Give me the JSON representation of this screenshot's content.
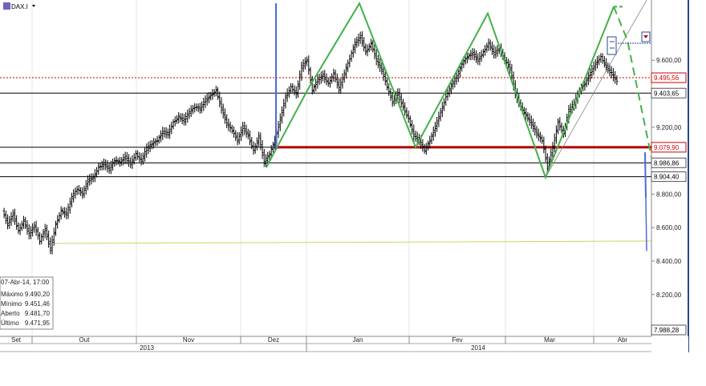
{
  "header": {
    "symbol": "DAX.I",
    "dropdown_icon": "caret-down-icon",
    "chart_icon": "chart-icon"
  },
  "chart_data": {
    "type": "candlestick",
    "y_ticks": [
      "9.600,00",
      "9.200,00",
      "8.800,00",
      "8.600,00",
      "8.400,00",
      "8.200,00"
    ],
    "y_tick_values": [
      9600,
      9200,
      8800,
      8600,
      8400,
      8200
    ],
    "ylim": [
      7950,
      9960
    ],
    "x_months": [
      "Set",
      "Out",
      "Nov",
      "Dez",
      "Jan",
      "Fev",
      "Mar",
      "Abr"
    ],
    "x_years": [
      "2013",
      "2014"
    ],
    "horizontal_levels": [
      {
        "label": "9.495,56",
        "value": 9495.56,
        "color": "#cc0000",
        "style": "dotted"
      },
      {
        "label": "9.403,65",
        "value": 9403.65,
        "color": "#000000",
        "style": "solid"
      },
      {
        "label": "9.079,90",
        "value": 9079.9,
        "color": "#b00000",
        "style": "thick"
      },
      {
        "label": "8.986,86",
        "value": 8986.86,
        "color": "#000000",
        "style": "solid"
      },
      {
        "label": "8.904,40",
        "value": 8904.4,
        "color": "#000000",
        "style": "solid"
      },
      {
        "label": "7.988,28",
        "value": 7988.28,
        "color": "#000000",
        "style": "box"
      }
    ],
    "info_box": {
      "date": "07-Abr-14, 17:00",
      "rows": [
        {
          "label": "Máximo",
          "value": "9.490,20"
        },
        {
          "label": "Mínimo",
          "value": "9.451,46"
        },
        {
          "label": "Aberto",
          "value": "9.481,70"
        },
        {
          "label": "Último",
          "value": "9.471,95",
          "highlight": true
        }
      ]
    },
    "colors": {
      "candles": "#000000",
      "pattern": "#44b04a",
      "blue_line": "#4a6bd8",
      "support_line": "#c8d860",
      "level_red": "#b00000",
      "tag_red": "#cc0000"
    },
    "price_series": [
      [
        0,
        8700
      ],
      [
        2,
        8620
      ],
      [
        4,
        8680
      ],
      [
        6,
        8580
      ],
      [
        8,
        8640
      ],
      [
        10,
        8560
      ],
      [
        12,
        8610
      ],
      [
        14,
        8520
      ],
      [
        16,
        8590
      ],
      [
        18,
        8470
      ],
      [
        20,
        8620
      ],
      [
        22,
        8700
      ],
      [
        24,
        8680
      ],
      [
        26,
        8780
      ],
      [
        28,
        8830
      ],
      [
        30,
        8800
      ],
      [
        32,
        8880
      ],
      [
        34,
        8900
      ],
      [
        36,
        8960
      ],
      [
        38,
        8980
      ],
      [
        40,
        8950
      ],
      [
        42,
        9000
      ],
      [
        44,
        8990
      ],
      [
        46,
        9020
      ],
      [
        48,
        8980
      ],
      [
        50,
        9040
      ],
      [
        52,
        9000
      ],
      [
        54,
        9070
      ],
      [
        56,
        9100
      ],
      [
        58,
        9120
      ],
      [
        60,
        9170
      ],
      [
        62,
        9160
      ],
      [
        64,
        9230
      ],
      [
        66,
        9260
      ],
      [
        68,
        9240
      ],
      [
        70,
        9290
      ],
      [
        72,
        9320
      ],
      [
        74,
        9310
      ],
      [
        76,
        9360
      ],
      [
        78,
        9390
      ],
      [
        80,
        9420
      ],
      [
        82,
        9310
      ],
      [
        84,
        9220
      ],
      [
        86,
        9180
      ],
      [
        88,
        9120
      ],
      [
        90,
        9200
      ],
      [
        92,
        9150
      ],
      [
        94,
        9060
      ],
      [
        96,
        9140
      ],
      [
        98,
        8990
      ],
      [
        100,
        9040
      ],
      [
        102,
        9120
      ],
      [
        104,
        9250
      ],
      [
        106,
        9380
      ],
      [
        108,
        9440
      ],
      [
        110,
        9400
      ],
      [
        112,
        9560
      ],
      [
        114,
        9600
      ],
      [
        116,
        9420
      ],
      [
        118,
        9480
      ],
      [
        120,
        9510
      ],
      [
        122,
        9460
      ],
      [
        124,
        9520
      ],
      [
        126,
        9430
      ],
      [
        128,
        9520
      ],
      [
        130,
        9610
      ],
      [
        132,
        9700
      ],
      [
        134,
        9740
      ],
      [
        136,
        9650
      ],
      [
        138,
        9700
      ],
      [
        140,
        9600
      ],
      [
        142,
        9540
      ],
      [
        144,
        9440
      ],
      [
        146,
        9350
      ],
      [
        148,
        9400
      ],
      [
        150,
        9320
      ],
      [
        152,
        9250
      ],
      [
        154,
        9150
      ],
      [
        156,
        9120
      ],
      [
        158,
        9060
      ],
      [
        160,
        9120
      ],
      [
        162,
        9200
      ],
      [
        164,
        9290
      ],
      [
        166,
        9380
      ],
      [
        168,
        9450
      ],
      [
        170,
        9500
      ],
      [
        172,
        9580
      ],
      [
        174,
        9620
      ],
      [
        176,
        9640
      ],
      [
        178,
        9600
      ],
      [
        180,
        9650
      ],
      [
        182,
        9700
      ],
      [
        184,
        9640
      ],
      [
        186,
        9670
      ],
      [
        188,
        9600
      ],
      [
        190,
        9550
      ],
      [
        192,
        9400
      ],
      [
        194,
        9320
      ],
      [
        196,
        9270
      ],
      [
        198,
        9220
      ],
      [
        200,
        9160
      ],
      [
        202,
        9120
      ],
      [
        204,
        8960
      ],
      [
        206,
        9080
      ],
      [
        208,
        9230
      ],
      [
        210,
        9160
      ],
      [
        212,
        9300
      ],
      [
        214,
        9340
      ],
      [
        216,
        9420
      ],
      [
        218,
        9460
      ],
      [
        220,
        9520
      ],
      [
        222,
        9580
      ],
      [
        224,
        9620
      ],
      [
        226,
        9560
      ],
      [
        228,
        9520
      ],
      [
        230,
        9471.95
      ]
    ]
  }
}
